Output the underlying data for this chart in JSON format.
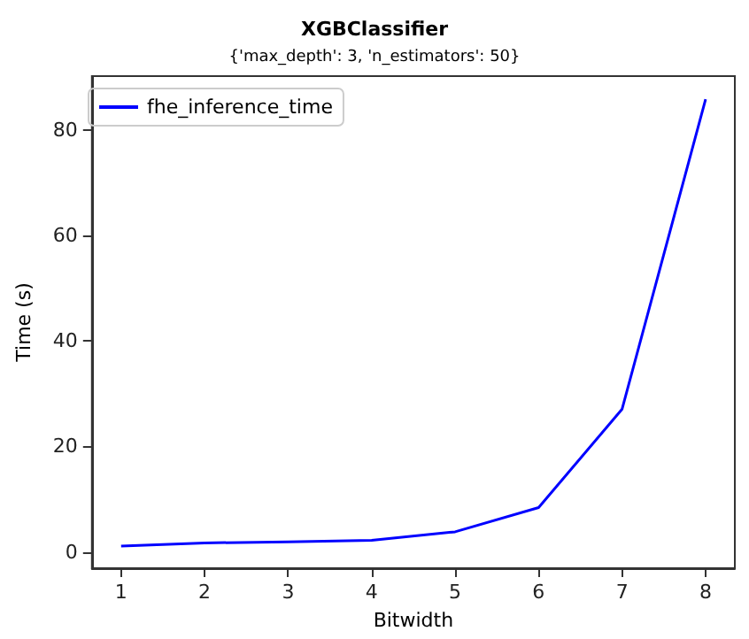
{
  "chart_data": {
    "type": "line",
    "title": "XGBClassifier",
    "subtitle": "{'max_depth': 3, 'n_estimators': 50}",
    "xlabel": "Bitwidth",
    "ylabel": "Time (s)",
    "x": [
      1,
      2,
      3,
      4,
      5,
      6,
      7,
      8
    ],
    "series": [
      {
        "name": "fhe_inference_time",
        "color": "#0000ff",
        "values": [
          1.1,
          1.7,
          1.9,
          2.2,
          3.8,
          8.4,
          27.1,
          85.9
        ]
      }
    ],
    "xlim": [
      0.65,
      8.35
    ],
    "xticks": [
      1,
      2,
      3,
      4,
      5,
      6,
      7,
      8
    ],
    "ylim": [
      -3.1,
      90.3
    ],
    "yticks": [
      0,
      20,
      40,
      60,
      80
    ],
    "legend": "top left",
    "grid": false,
    "marker": "none",
    "line_style": "solid"
  }
}
